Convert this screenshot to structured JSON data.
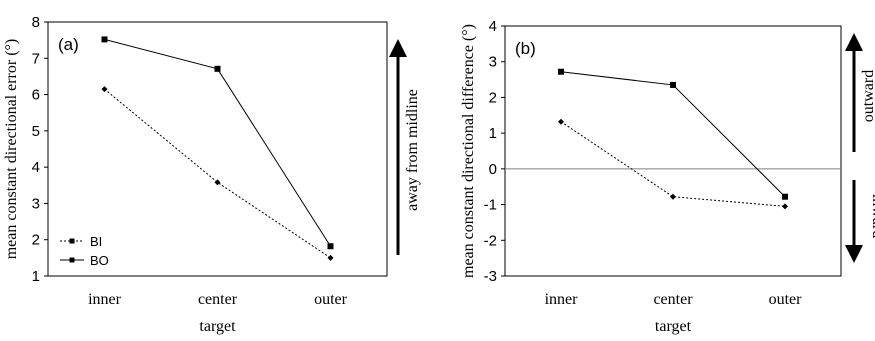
{
  "chart_data": [
    {
      "type": "line",
      "panel_label": "(a)",
      "categories": [
        "inner",
        "center",
        "outer"
      ],
      "series": [
        {
          "name": "BI",
          "values": [
            6.15,
            3.58,
            1.5
          ],
          "style": "dotted",
          "marker": "diamond"
        },
        {
          "name": "BO",
          "values": [
            7.52,
            6.71,
            1.82
          ],
          "style": "solid",
          "marker": "square"
        }
      ],
      "xlabel": "target",
      "ylabel": "mean constant directional error (°)",
      "ylim": [
        1,
        8
      ],
      "yticks": [
        "1",
        "2",
        "3",
        "4",
        "5",
        "6",
        "7",
        "8"
      ],
      "legend_position": "bottom-left",
      "grid": false,
      "annotation": {
        "text": "away from midline",
        "direction": "up"
      }
    },
    {
      "type": "line",
      "panel_label": "(b)",
      "categories": [
        "inner",
        "center",
        "outer"
      ],
      "series": [
        {
          "name": "BI",
          "values": [
            1.32,
            -0.78,
            -1.05
          ],
          "style": "dotted",
          "marker": "diamond"
        },
        {
          "name": "BO",
          "values": [
            2.72,
            2.35,
            -0.78
          ],
          "style": "solid",
          "marker": "square"
        }
      ],
      "xlabel": "target",
      "ylabel": "mean constant directional difference (°)",
      "ylim": [
        -3,
        4
      ],
      "yticks": [
        "-3",
        "-2",
        "-1",
        "0",
        "1",
        "2",
        "3",
        "4"
      ],
      "reference_line": 0,
      "grid": false,
      "annotations": [
        {
          "text": "outward",
          "direction": "up"
        },
        {
          "text": "inward",
          "direction": "down"
        }
      ]
    }
  ]
}
